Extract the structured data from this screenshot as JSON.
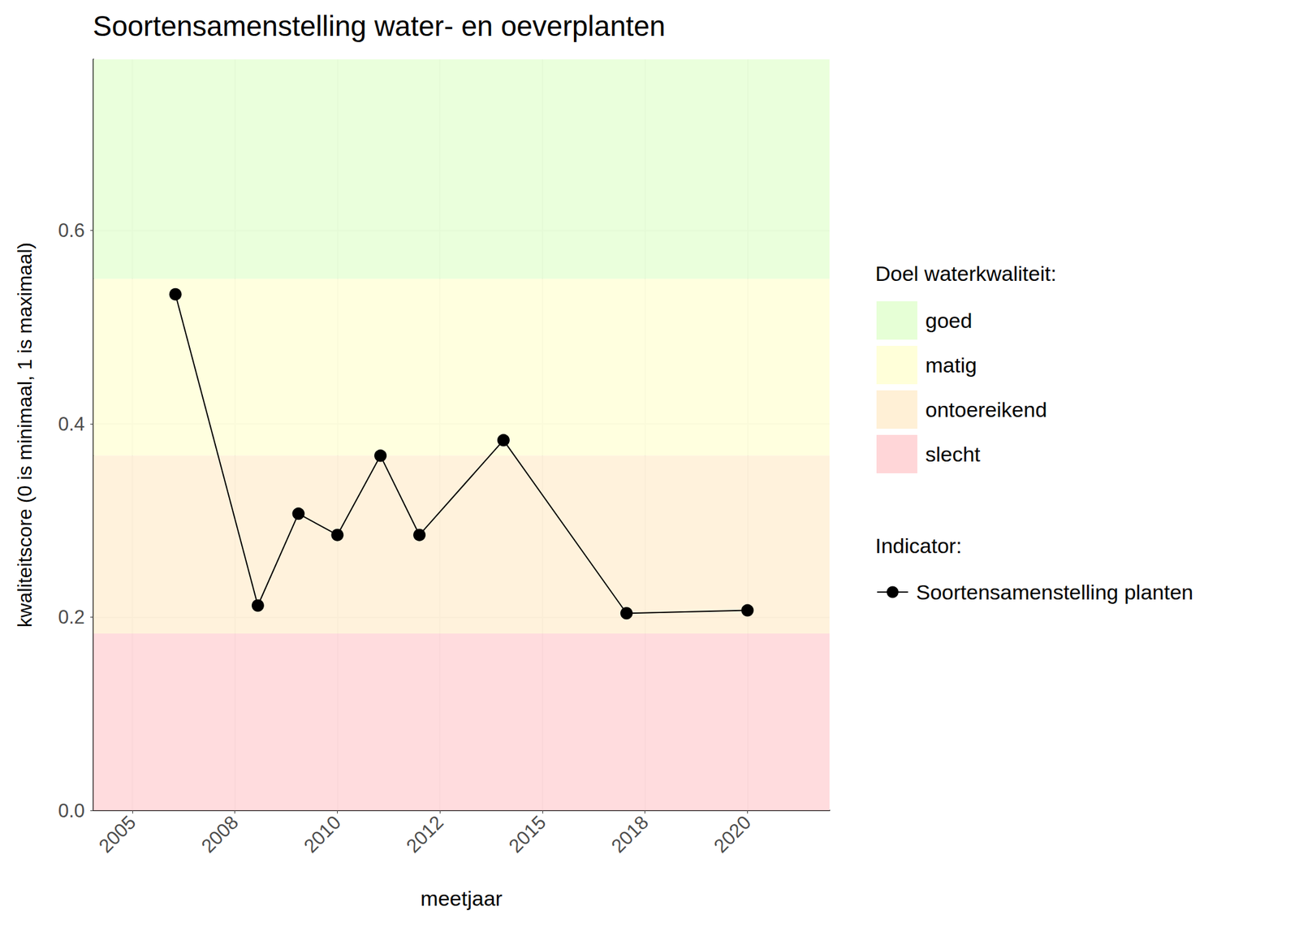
{
  "chart_data": {
    "type": "line",
    "title": "Soortensamenstelling water- en oeverplanten",
    "x_label": "meetjaar",
    "y_label": "kwaliteitscore (0 is minimaal, 1 is maximaal)",
    "bands_title": "Doel waterkwaliteit:",
    "legend_title": "Indicator:",
    "bands": [
      {
        "name": "goed",
        "from": 0.55,
        "to": 1,
        "color": "#E6FFD6"
      },
      {
        "name": "matig",
        "from": 0.367,
        "to": 0.55,
        "color": "#FFFFD9"
      },
      {
        "name": "ontoereikend",
        "from": 0.183,
        "to": 0.367,
        "color": "#FFF0D6"
      },
      {
        "name": "slecht",
        "from": 0,
        "to": 0.183,
        "color": "#FFD6D8"
      }
    ],
    "x": [
      2006.05,
      2008.06,
      2009.05,
      2010.0,
      2011.05,
      2012.0,
      2014.05,
      2017.05,
      2020.0
    ],
    "series": [
      {
        "name": "Soortensamenstelling planten",
        "color": "#000000",
        "marker": "circle",
        "line_style": "solid",
        "values": [
          0.534,
          0.212,
          0.307,
          0.285,
          0.367,
          0.285,
          0.383,
          0.204,
          0.207
        ]
      }
    ],
    "xlim": [
      2004.05,
      2022.0
    ],
    "xticks": [
      2005,
      {
        "value": 2007.5,
        "label": "2008"
      },
      2010,
      {
        "value": 2012.5,
        "label": "2012"
      },
      2015,
      {
        "value": 2017.5,
        "label": "2018"
      },
      2020
    ],
    "ylim": [
      0,
      0.777
    ],
    "yticks": [
      {
        "value": 0,
        "label": "0.0"
      },
      0.2,
      0.4,
      0.6
    ],
    "grid": true,
    "legend": "right"
  }
}
